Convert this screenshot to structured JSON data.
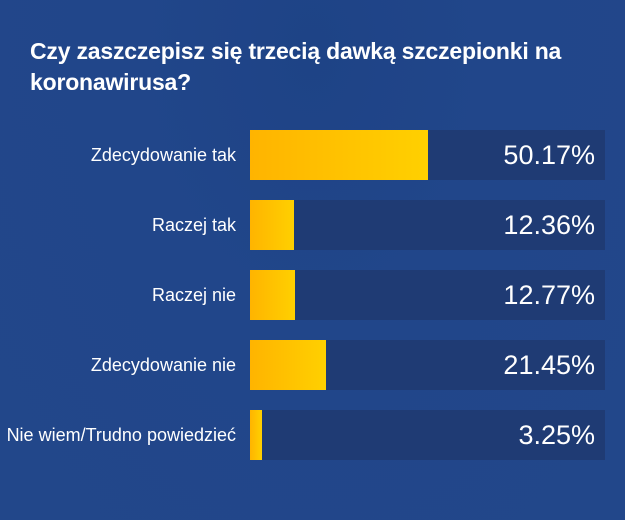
{
  "title": "Czy zaszczepisz się trzecią dawką szczepionki na koronawirusa?",
  "colors": {
    "background": "#21468a",
    "track": "#1f3b74",
    "bar_start": "#ffb400",
    "bar_end": "#ffd000",
    "text": "#ffffff"
  },
  "chart_data": {
    "type": "bar",
    "orientation": "horizontal",
    "title": "Czy zaszczepisz się trzecią dawką szczepionki na koronawirusa?",
    "categories": [
      "Zdecydowanie tak",
      "Raczej tak",
      "Raczej nie",
      "Zdecydowanie nie",
      "Nie wiem/Trudno powiedzieć"
    ],
    "values": [
      50.17,
      12.36,
      12.77,
      21.45,
      3.25
    ],
    "value_labels": [
      "50.17%",
      "12.36%",
      "12.77%",
      "21.45%",
      "3.25%"
    ],
    "unit": "%",
    "xlim": [
      0,
      100
    ],
    "grid": false,
    "legend": null
  },
  "rows": [
    {
      "label": "Zdecydowanie tak",
      "value": 50.17,
      "value_label": "50.17%"
    },
    {
      "label": "Raczej tak",
      "value": 12.36,
      "value_label": "12.36%"
    },
    {
      "label": "Raczej nie",
      "value": 12.77,
      "value_label": "12.77%"
    },
    {
      "label": "Zdecydowanie nie",
      "value": 21.45,
      "value_label": "21.45%"
    },
    {
      "label": "Nie wiem/Trudno powiedzieć",
      "value": 3.25,
      "value_label": "3.25%"
    }
  ]
}
